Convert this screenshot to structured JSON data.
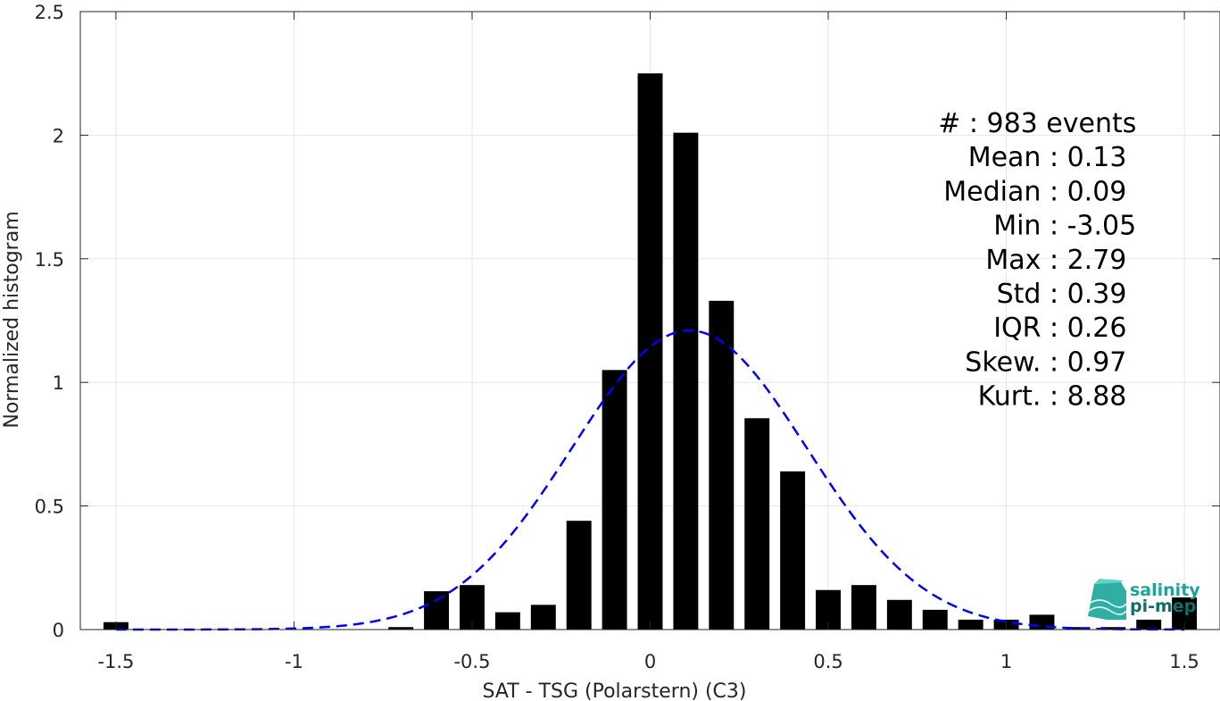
{
  "chart_data": {
    "type": "bar",
    "xlabel": "SAT - TSG (Polarstern) (C3)",
    "ylabel": "Normalized histogram",
    "xlim": [
      -1.6,
      1.6
    ],
    "ylim": [
      0,
      2.5
    ],
    "xticks": [
      -1.5,
      -1,
      -0.5,
      0,
      0.5,
      1,
      1.5
    ],
    "xtick_labels": [
      "-1.5",
      "-1",
      "-0.5",
      "0",
      "0.5",
      "1",
      "1.5"
    ],
    "yticks": [
      0,
      0.5,
      1,
      1.5,
      2,
      2.5
    ],
    "ytick_labels": [
      "0",
      "0.5",
      "1",
      "1.5",
      "2",
      "2.5"
    ],
    "grid": true,
    "bar_width": 0.07,
    "bar_color": "#000000",
    "bars": [
      {
        "x": -1.5,
        "y": 0.03
      },
      {
        "x": -0.7,
        "y": 0.01
      },
      {
        "x": -0.6,
        "y": 0.155
      },
      {
        "x": -0.5,
        "y": 0.18
      },
      {
        "x": -0.4,
        "y": 0.07
      },
      {
        "x": -0.3,
        "y": 0.1
      },
      {
        "x": -0.2,
        "y": 0.44
      },
      {
        "x": -0.1,
        "y": 1.05
      },
      {
        "x": 0.0,
        "y": 2.25
      },
      {
        "x": 0.1,
        "y": 2.01
      },
      {
        "x": 0.2,
        "y": 1.33
      },
      {
        "x": 0.3,
        "y": 0.855
      },
      {
        "x": 0.4,
        "y": 0.64
      },
      {
        "x": 0.5,
        "y": 0.16
      },
      {
        "x": 0.6,
        "y": 0.18
      },
      {
        "x": 0.7,
        "y": 0.12
      },
      {
        "x": 0.8,
        "y": 0.08
      },
      {
        "x": 0.9,
        "y": 0.04
      },
      {
        "x": 1.0,
        "y": 0.04
      },
      {
        "x": 1.1,
        "y": 0.06
      },
      {
        "x": 1.2,
        "y": 0.01
      },
      {
        "x": 1.3,
        "y": 0.01
      },
      {
        "x": 1.4,
        "y": 0.04
      },
      {
        "x": 1.5,
        "y": 0.13
      }
    ],
    "fit_curve": {
      "type": "gaussian",
      "mean": 0.11,
      "std": 0.33,
      "peak": 1.21,
      "x_range": [
        -1.5,
        1.5
      ],
      "color": "#0000ff",
      "style": "dashed"
    },
    "annotations": [
      "#  : 983 events",
      "Mean : 0.13",
      "Median : 0.09",
      "Min : -3.05",
      "Max : 2.79",
      "Std : 0.39",
      "IQR : 0.26",
      "Skew. : 0.97",
      "Kurt. : 8.88"
    ]
  },
  "logo": {
    "line1": "salinity",
    "line2": "pi-mep",
    "color": "#1aa59a"
  }
}
